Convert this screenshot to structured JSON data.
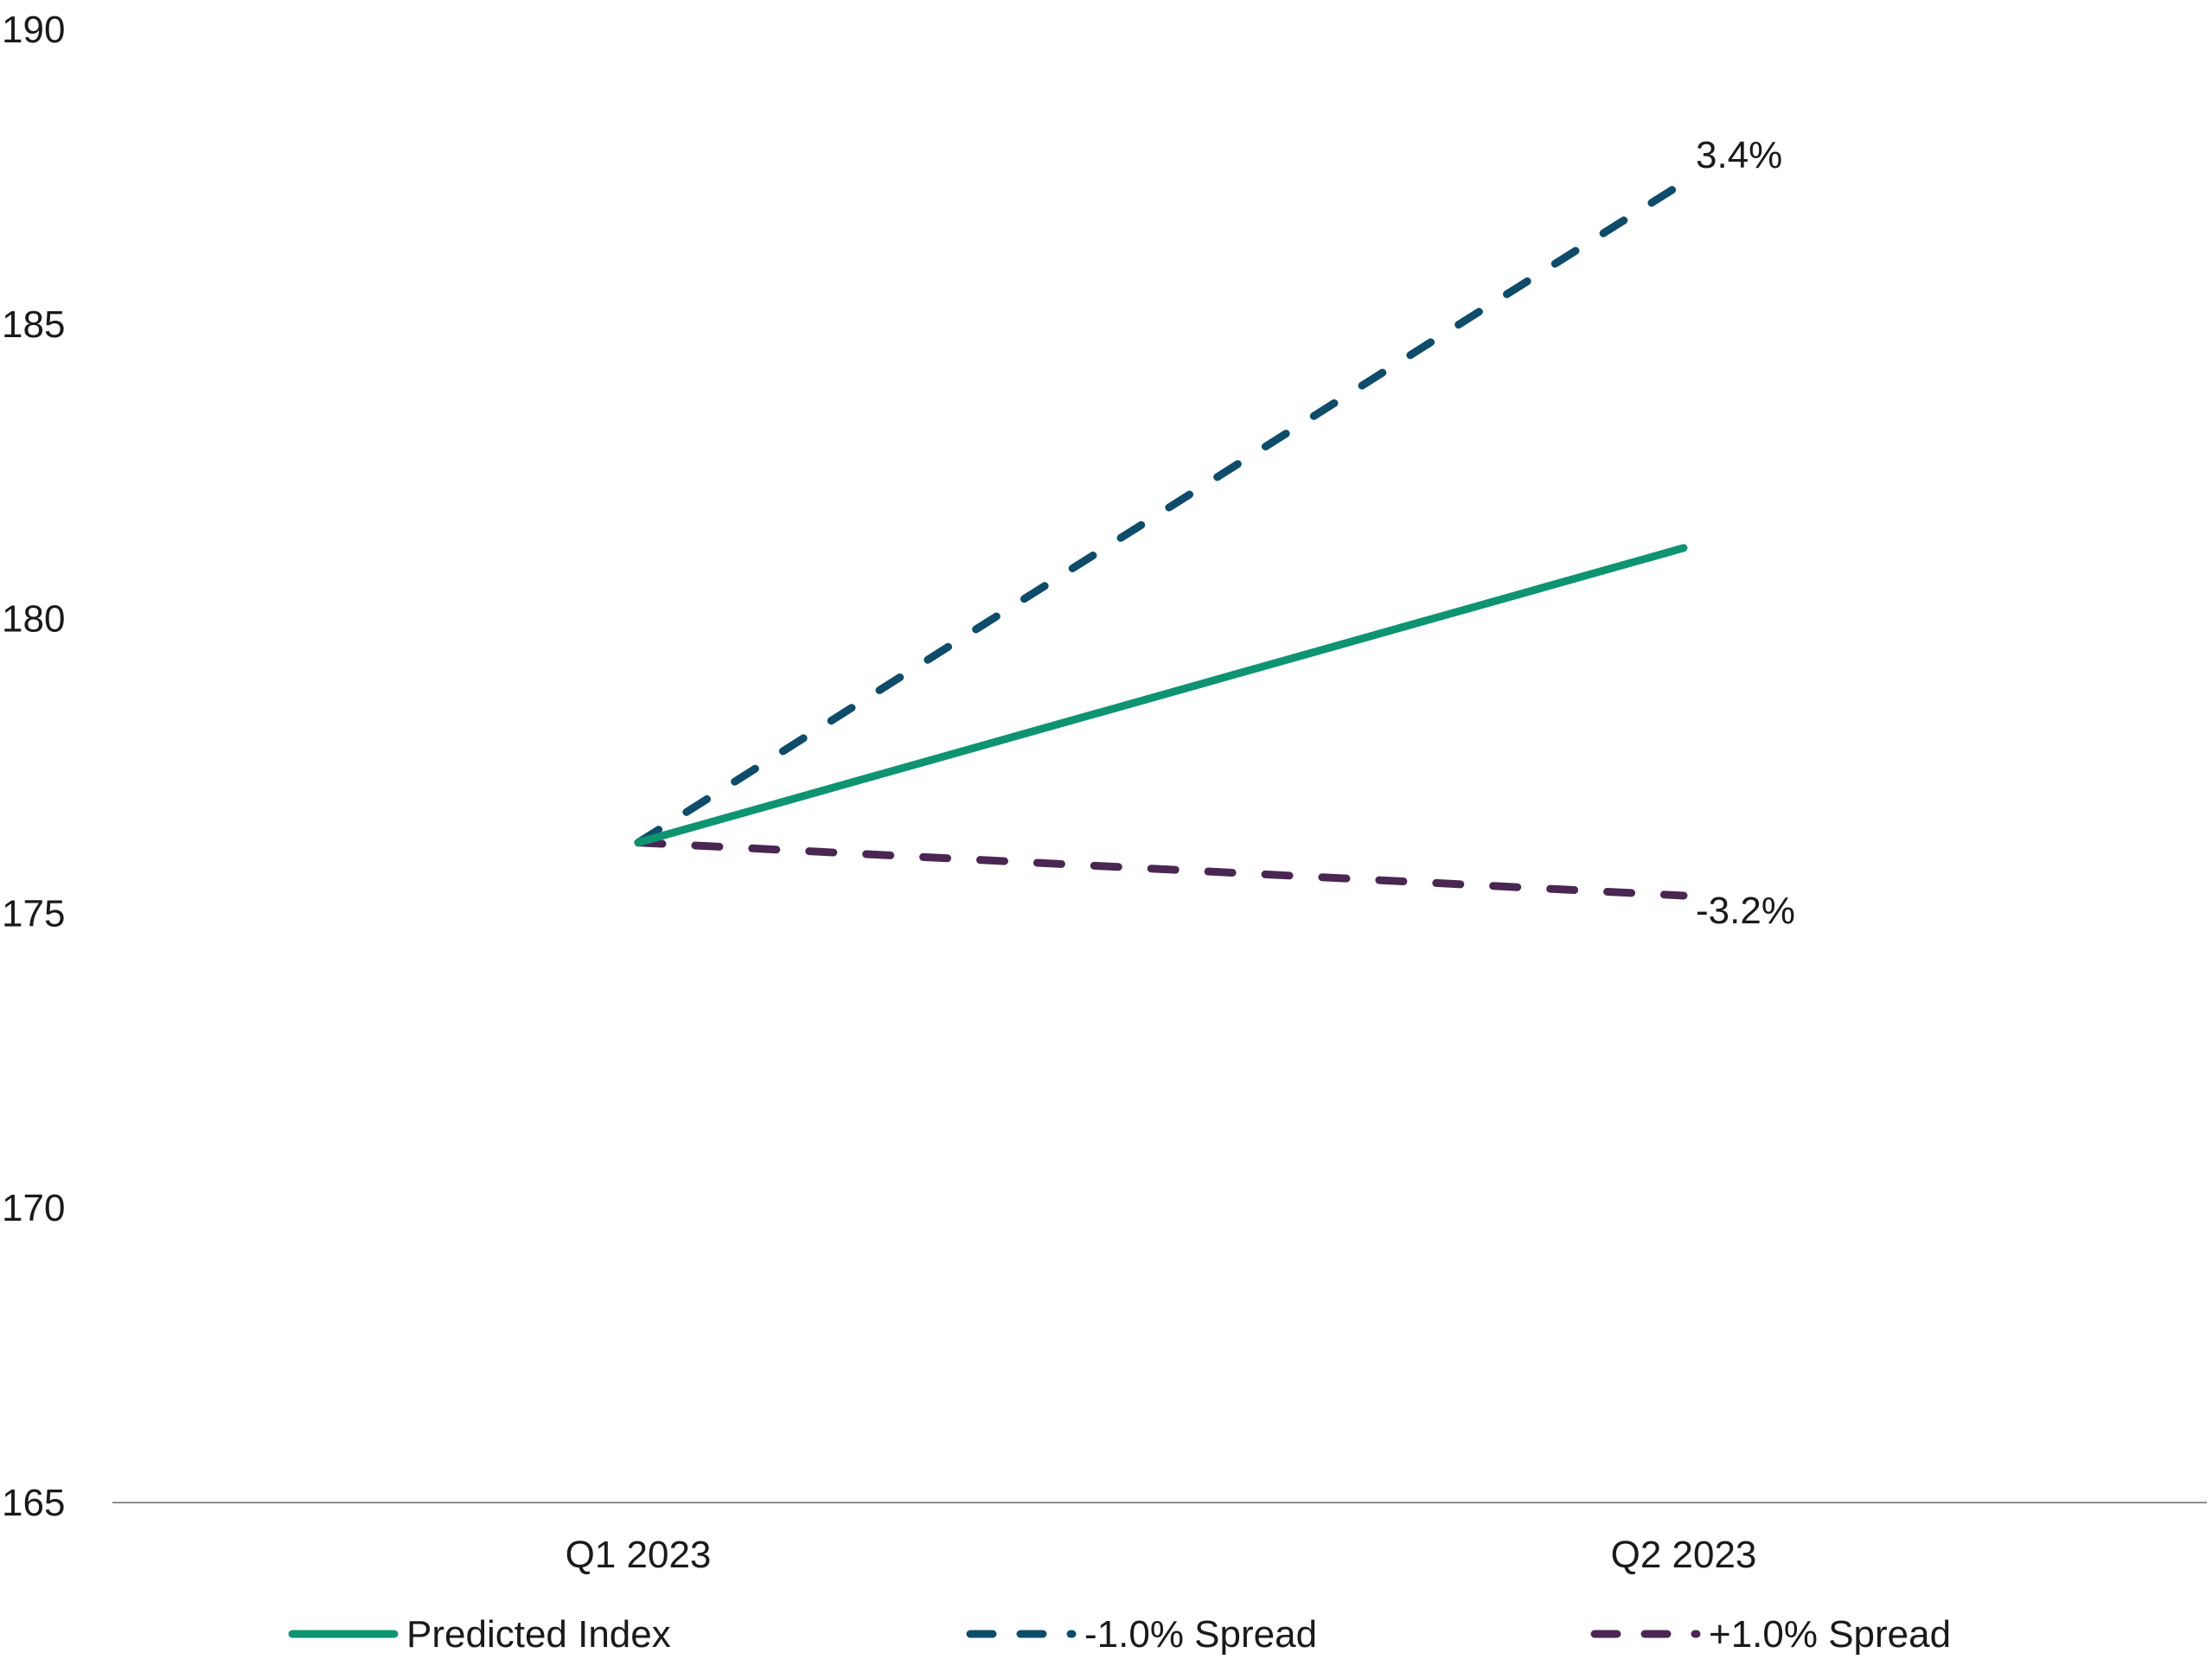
{
  "chart_data": {
    "type": "line",
    "title": "",
    "xlabel": "",
    "ylabel": "",
    "categories": [
      "Q1 2023",
      "Q2 2023"
    ],
    "ylim": [
      165,
      190
    ],
    "yticks": [
      165,
      170,
      175,
      180,
      185,
      190
    ],
    "grid": false,
    "legend_position": "bottom",
    "series": [
      {
        "name": "Predicted Index",
        "values": [
          176.2,
          181.2
        ],
        "color": "#0e9470",
        "style": "solid",
        "end_label": ""
      },
      {
        "name": "-1.0% Spread",
        "values": [
          176.2,
          187.4
        ],
        "color": "#0f4c6a",
        "style": "dashed",
        "end_label": "3.4%"
      },
      {
        "name": "+1.0% Spread",
        "values": [
          176.2,
          175.3
        ],
        "color": "#4a2652",
        "style": "dashed",
        "end_label": "-3.2%"
      }
    ]
  }
}
